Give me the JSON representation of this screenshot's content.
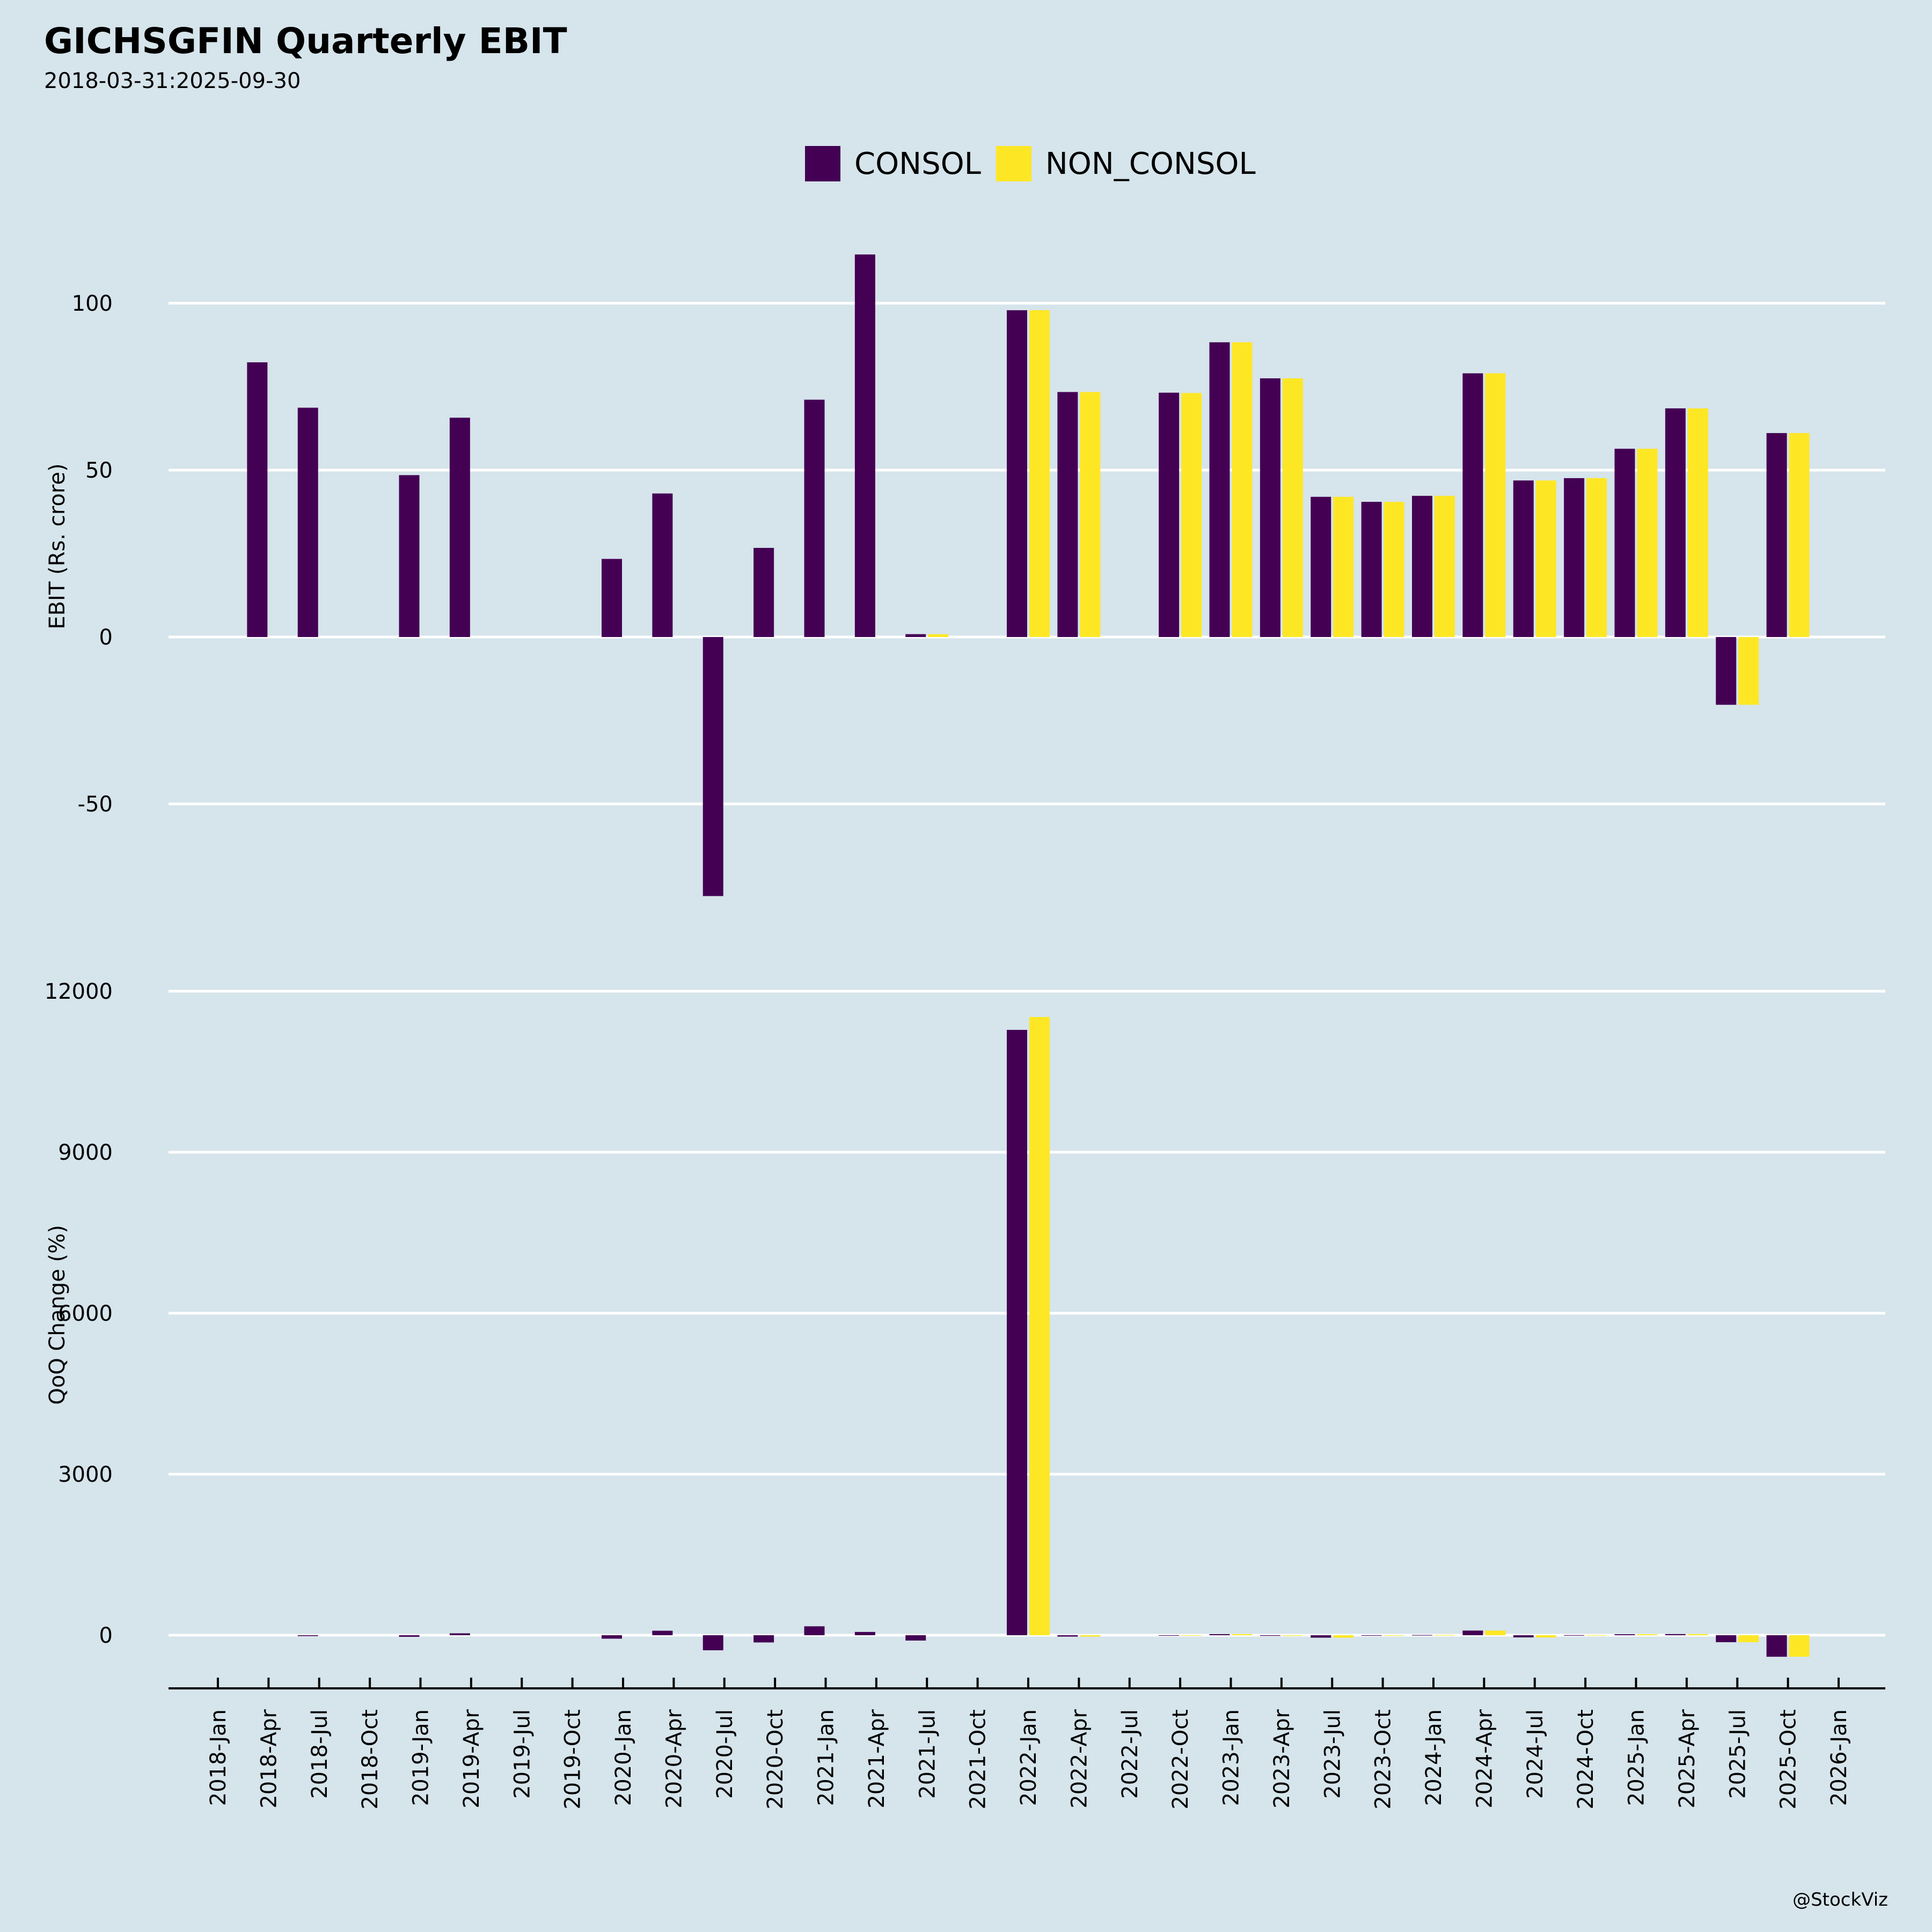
{
  "title": "GICHSGFIN Quarterly EBIT",
  "subtitle": "2018-03-31:2025-09-30",
  "footer": "@StockViz",
  "colors": {
    "background": "#D6E4EB",
    "consol": "#440154",
    "non_consol": "#FDE725",
    "grid": "#FFFFFF"
  },
  "legend": [
    {
      "label": "CONSOL",
      "color": "#440154"
    },
    {
      "label": "NON_CONSOL",
      "color": "#FDE725"
    }
  ],
  "chart_data": [
    {
      "type": "bar",
      "title": "GICHSGFIN Quarterly EBIT",
      "ylabel": "EBIT (Rs. crore)",
      "ylim": [
        -80,
        120
      ],
      "yticks": [
        100,
        50,
        0,
        -50
      ],
      "ytick_labels": [
        "100",
        "50",
        "0",
        "-50"
      ],
      "grid": true,
      "legend_position": "top-center",
      "x": [
        "2018-03-31",
        "2018-06-30",
        "2018-09-30",
        "2018-12-31",
        "2019-03-31",
        "2019-06-30",
        "2019-09-30",
        "2019-12-31",
        "2020-03-31",
        "2020-06-30",
        "2020-09-30",
        "2020-12-31",
        "2021-03-31",
        "2021-06-30",
        "2021-09-30",
        "2021-12-31",
        "2022-03-31",
        "2022-06-30",
        "2022-09-30",
        "2022-12-31",
        "2023-03-31",
        "2023-06-30",
        "2023-09-30",
        "2023-12-31",
        "2024-03-31",
        "2024-06-30",
        "2024-09-30",
        "2024-12-31",
        "2025-03-31",
        "2025-06-30",
        "2025-09-30"
      ],
      "series": [
        {
          "name": "CONSOL",
          "values": [
            82.3,
            68.7,
            null,
            48.5,
            65.7,
            null,
            null,
            23.4,
            43.0,
            -77.6,
            26.7,
            71.1,
            114.6,
            0.86,
            null,
            97.9,
            73.4,
            null,
            73.2,
            88.3,
            77.5,
            42.0,
            40.5,
            42.3,
            79.0,
            46.9,
            47.6,
            56.4,
            68.5,
            -20.3,
            61.1
          ]
        },
        {
          "name": "NON_CONSOL",
          "values": [
            null,
            null,
            null,
            null,
            null,
            null,
            null,
            null,
            null,
            null,
            null,
            null,
            null,
            0.84,
            null,
            97.9,
            73.4,
            null,
            73.1,
            88.3,
            77.5,
            42.0,
            40.5,
            42.3,
            79.0,
            46.9,
            47.6,
            56.4,
            68.5,
            -20.3,
            61.1
          ]
        }
      ]
    },
    {
      "type": "bar",
      "ylabel": "QoQ Change (%)",
      "ylim": [
        -330,
        12500
      ],
      "yticks": [
        12000,
        9000,
        6000,
        3000,
        0
      ],
      "ytick_labels": [
        "12000",
        "9000",
        "6000",
        "3000",
        "0"
      ],
      "grid": true,
      "xtick_labels": [
        "2018-Jan",
        "2018-Apr",
        "2018-Jul",
        "2018-Oct",
        "2019-Jan",
        "2019-Apr",
        "2019-Jul",
        "2019-Oct",
        "2020-Jan",
        "2020-Apr",
        "2020-Jul",
        "2020-Oct",
        "2021-Jan",
        "2021-Apr",
        "2021-Jul",
        "2021-Oct",
        "2022-Jan",
        "2022-Apr",
        "2022-Jul",
        "2022-Oct",
        "2023-Jan",
        "2023-Apr",
        "2023-Jul",
        "2023-Oct",
        "2024-Jan",
        "2024-Apr",
        "2024-Jul",
        "2024-Oct",
        "2025-Jan",
        "2025-Apr",
        "2025-Jul",
        "2025-Oct",
        "2026-Jan"
      ],
      "series": [
        {
          "name": "CONSOL",
          "values": [
            null,
            -16.5,
            null,
            -29.4,
            35.5,
            null,
            null,
            -64.4,
            83.8,
            -280.5,
            -134.4,
            166.3,
            61.2,
            -99.2,
            null,
            11280,
            -25.0,
            null,
            -0.3,
            20.6,
            -12.2,
            -45.8,
            -3.6,
            4.4,
            86.8,
            -40.6,
            1.5,
            18.5,
            21.5,
            -129.6,
            -401.0
          ]
        },
        {
          "name": "NON_CONSOL",
          "values": [
            null,
            null,
            null,
            null,
            null,
            null,
            null,
            null,
            null,
            null,
            null,
            null,
            null,
            null,
            null,
            11520,
            -25.0,
            null,
            -0.4,
            20.8,
            -12.2,
            -45.8,
            -3.6,
            4.4,
            86.8,
            -40.6,
            1.5,
            18.5,
            21.5,
            -129.6,
            -401.0
          ]
        }
      ]
    }
  ]
}
